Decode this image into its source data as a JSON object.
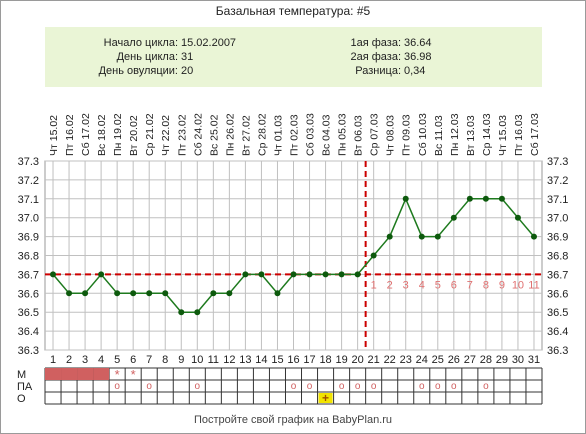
{
  "title": "Базальная температура: #5",
  "info": {
    "cycle_start_label": "Начало цикла:",
    "cycle_start": "15.02.2007",
    "cycle_day_label": "День цикла:",
    "cycle_day": "31",
    "ovulation_day_label": "День овуляции:",
    "ovulation_day": "20",
    "phase1_label": "1ая фаза:",
    "phase1": "36.64",
    "phase2_label": "2ая фаза:",
    "phase2": "36.98",
    "difference_label": "Разница:",
    "difference": "0,34"
  },
  "footer": "Постройте свой график на BabyPlan.ru",
  "colors": {
    "line": "#1e7a1e",
    "point": "#0d5a0d",
    "cover": "#cc0000",
    "menses": "#d06060",
    "phase_number": "#e07070",
    "info_bg": "#eaf5d6",
    "grid": "#c0c0c0"
  },
  "chart_data": {
    "type": "line",
    "dates": [
      "Чт 15.02",
      "Пт 16.02",
      "Сб 17.02",
      "Вс 18.02",
      "Пн 19.02",
      "Вт 20.02",
      "Ср 21.02",
      "Чт 22.02",
      "Пт 23.02",
      "Сб 24.02",
      "Вс 25.02",
      "Пн 26.02",
      "Вт 27.02",
      "Ср 28.02",
      "Чт 01.03",
      "Пт 02.03",
      "Сб 03.03",
      "Вс 04.03",
      "Пн 05.03",
      "Вт 06.03",
      "Ср 07.03",
      "Чт 08.03",
      "Пт 09.03",
      "Сб 10.03",
      "Вс 11.03",
      "Пн 12.03",
      "Вт 13.03",
      "Ср 14.03",
      "Чт 15.03",
      "Пт 16.03",
      "Сб 17.03"
    ],
    "days": [
      1,
      2,
      3,
      4,
      5,
      6,
      7,
      8,
      9,
      10,
      11,
      12,
      13,
      14,
      15,
      16,
      17,
      18,
      19,
      20,
      21,
      22,
      23,
      24,
      25,
      26,
      27,
      28,
      29,
      30,
      31
    ],
    "values": [
      36.7,
      36.6,
      36.6,
      36.7,
      36.6,
      36.6,
      36.6,
      36.6,
      36.5,
      36.5,
      36.6,
      36.6,
      36.7,
      36.7,
      36.6,
      36.7,
      36.7,
      36.7,
      36.7,
      36.7,
      36.8,
      36.9,
      37.1,
      36.9,
      36.9,
      37.0,
      37.1,
      37.1,
      37.1,
      37.0,
      36.9
    ],
    "ylim": [
      36.3,
      37.3
    ],
    "yticks": [
      "36.3",
      "36.4",
      "36.5",
      "36.6",
      "36.7",
      "36.8",
      "36.9",
      "37.0",
      "37.1",
      "37.2",
      "37.3"
    ],
    "cover_line": 36.7,
    "ovulation_day": 20,
    "phase2_labels": [
      "1",
      "2",
      "3",
      "4",
      "5",
      "6",
      "7",
      "8",
      "9",
      "10",
      "11"
    ],
    "grid": true
  },
  "rows": {
    "labels": [
      "М",
      "ПА",
      "О"
    ],
    "menses": [
      1,
      1,
      1,
      1,
      0,
      0,
      0,
      0,
      0,
      0,
      0,
      0,
      0,
      0,
      0,
      0,
      0,
      0,
      0,
      0,
      0,
      0,
      0,
      0,
      0,
      0,
      0,
      0,
      0,
      0,
      0
    ],
    "menses_spotting_days": [
      5,
      6
    ],
    "menses_spotting_symbol": "*",
    "pa_days": [
      5,
      7,
      10,
      16,
      17,
      19,
      20,
      21,
      24,
      25,
      26,
      28
    ],
    "pa_symbol": "o",
    "o_days": [
      18
    ],
    "o_symbol": "+"
  }
}
